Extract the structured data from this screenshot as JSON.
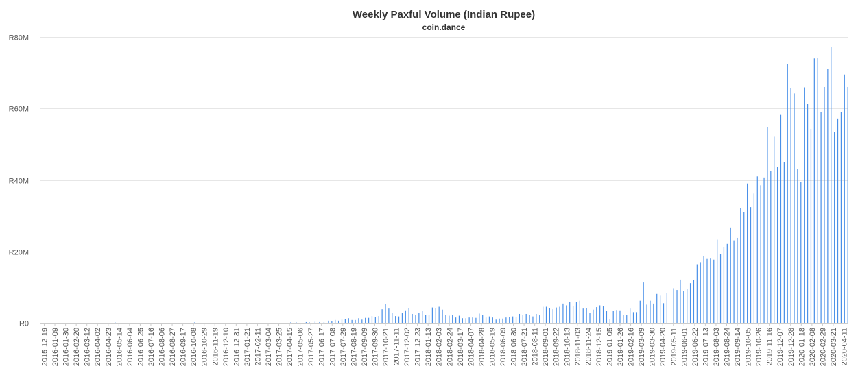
{
  "chart_data": {
    "type": "bar",
    "title": "Weekly Paxful Volume (Indian Rupee)",
    "subtitle": "coin.dance",
    "xlabel": "",
    "ylabel": "",
    "bar_color": "#4a90e8",
    "grid": true,
    "legend": "none",
    "ylim": [
      0,
      80000000
    ],
    "y_ticks": [
      0,
      20000000,
      40000000,
      60000000,
      80000000
    ],
    "y_tick_labels": [
      "R0",
      "R20M",
      "R40M",
      "R60M",
      "R80M"
    ],
    "x_tick_labels": [
      "2015-12-19",
      "2016-01-09",
      "2016-01-30",
      "2016-02-20",
      "2016-03-12",
      "2016-04-02",
      "2016-04-23",
      "2016-05-14",
      "2016-06-04",
      "2016-06-25",
      "2016-07-16",
      "2016-08-06",
      "2016-08-27",
      "2016-09-17",
      "2016-10-08",
      "2016-10-29",
      "2016-11-19",
      "2016-12-10",
      "2016-12-31",
      "2017-01-21",
      "2017-02-11",
      "2017-03-04",
      "2017-03-25",
      "2017-04-15",
      "2017-05-06",
      "2017-05-27",
      "2017-06-17",
      "2017-07-08",
      "2017-07-29",
      "2017-08-19",
      "2017-09-09",
      "2017-09-30",
      "2017-10-21",
      "2017-11-11",
      "2017-12-02",
      "2017-12-23",
      "2018-01-13",
      "2018-02-03",
      "2018-02-24",
      "2018-03-17",
      "2018-04-07",
      "2018-04-28",
      "2018-05-19",
      "2018-06-09",
      "2018-06-30",
      "2018-07-21",
      "2018-08-11",
      "2018-09-01",
      "2018-09-22",
      "2018-10-13",
      "2018-11-03",
      "2018-11-24",
      "2018-12-15",
      "2019-01-05",
      "2019-01-26",
      "2019-02-16",
      "2019-03-09",
      "2019-03-30",
      "2019-04-20",
      "2019-05-11",
      "2019-06-01",
      "2019-06-22",
      "2019-07-13",
      "2019-08-03",
      "2019-08-24",
      "2019-09-14",
      "2019-10-05",
      "2019-10-26",
      "2019-11-16",
      "2019-12-07",
      "2019-12-28",
      "2020-01-18",
      "2020-02-08",
      "2020-02-29",
      "2020-03-21",
      "2020-04-11"
    ],
    "values": [
      0,
      0,
      0,
      0,
      0,
      0,
      0,
      0,
      0,
      0,
      0,
      0,
      0,
      0,
      0,
      0,
      0,
      0,
      0,
      0,
      0,
      0,
      0,
      0,
      0,
      0,
      0,
      0,
      0,
      0,
      0,
      0,
      0,
      0,
      0,
      0,
      0,
      0,
      0,
      0,
      0,
      0,
      0,
      0,
      0,
      0,
      0,
      0,
      0,
      0,
      0,
      0,
      0,
      0,
      0,
      0,
      0,
      0,
      0,
      0,
      0,
      0,
      0,
      0,
      0,
      0,
      0,
      100000,
      0,
      0,
      0,
      0,
      0,
      0,
      0,
      0,
      0,
      0,
      0,
      0,
      0,
      0,
      0,
      0,
      0,
      0,
      0,
      0,
      0,
      0,
      0,
      0,
      0,
      0,
      0,
      0,
      0,
      0,
      0,
      0,
      0,
      0,
      0,
      0,
      0,
      0,
      0,
      0,
      0,
      0,
      0,
      0,
      0,
      0,
      0,
      0,
      0,
      0,
      0,
      0,
      0,
      0,
      0,
      0,
      0,
      0,
      0,
      0,
      0,
      0,
      0,
      0,
      0,
      0,
      0,
      0,
      0,
      0,
      100000,
      0,
      0,
      0,
      0,
      0,
      0,
      0,
      0,
      0,
      0,
      0,
      0,
      0,
      0,
      0,
      0,
      0,
      0,
      0,
      0,
      0,
      0,
      0,
      0,
      0,
      0,
      0,
      0,
      0,
      0,
      0,
      0,
      0,
      0,
      0,
      0,
      0,
      0,
      0,
      0,
      0,
      0,
      0,
      0,
      0,
      0,
      0,
      0,
      0,
      0,
      0,
      0,
      0,
      0,
      0,
      0,
      0,
      0,
      0,
      0,
      0,
      0,
      0,
      0,
      0,
      0,
      0,
      0,
      0,
      0,
      0,
      0,
      0,
      0,
      0,
      0,
      0,
      0,
      0,
      0,
      0,
      0,
      0,
      0,
      0,
      100000,
      0,
      0,
      0,
      0,
      200000,
      0,
      0,
      0,
      0,
      0,
      0,
      0,
      0,
      200000,
      0,
      0,
      100000,
      0,
      0,
      0,
      0,
      300000,
      0,
      0,
      0,
      200000,
      0,
      0,
      0,
      200000,
      0,
      0,
      0,
      600000,
      0,
      0,
      500000,
      0,
      0,
      800000,
      0,
      0,
      600000,
      0,
      0,
      900000,
      0,
      0,
      1100000,
      0,
      0,
      1300000,
      0,
      0,
      800000,
      0,
      0,
      800000,
      0,
      0,
      1300000,
      0,
      0,
      900000,
      0,
      0,
      1400000,
      0,
      0,
      1400000,
      0,
      0,
      1900000,
      0,
      0,
      1600000,
      0,
      0,
      1900000,
      0,
      0,
      3800000,
      0,
      0,
      5300000,
      0,
      0,
      4000000,
      0,
      0,
      2700000,
      0,
      0,
      1900000,
      0,
      0,
      1800000,
      0,
      0,
      2800000,
      0,
      0,
      3500000,
      0,
      0,
      4200000,
      0,
      0,
      2500000,
      0,
      0,
      2100000,
      0,
      0,
      2800000,
      0,
      0,
      3300000,
      0,
      0,
      2300000,
      0,
      0,
      2200000,
      0,
      0,
      4300000,
      0,
      0,
      4100000,
      0,
      0,
      4500000,
      0,
      0,
      3700000,
      0,
      0,
      2300000,
      0,
      0,
      2000000,
      0,
      0,
      2300000,
      0,
      0,
      1500000,
      0,
      0,
      2000000,
      0,
      0,
      1300000,
      0,
      0,
      1300000,
      0,
      0,
      1500000,
      0,
      0,
      1500000,
      0,
      0,
      1400000,
      0,
      0,
      2600000,
      0,
      0,
      2200000,
      0,
      0,
      1500000,
      0,
      0,
      1800000,
      0,
      0,
      1500000,
      0,
      0,
      900000,
      0,
      0,
      1200000,
      0,
      0,
      1200000,
      0,
      0,
      1500000,
      0,
      0,
      1700000,
      0,
      0,
      1800000,
      0,
      0,
      1700000,
      0,
      0,
      2500000,
      0,
      0,
      2200000,
      0,
      0,
      2500000,
      0,
      0,
      2300000,
      0,
      0,
      1800000,
      0,
      0,
      2500000,
      0,
      0,
      2100000,
      0,
      0,
      4500000,
      0,
      0,
      4500000,
      0,
      0,
      4100000,
      0,
      0,
      3800000,
      0,
      0,
      4300000,
      0,
      0,
      4500000,
      0,
      0,
      5400000,
      0,
      0,
      4900000,
      0,
      0,
      5900000,
      0,
      0,
      4800000,
      0,
      0,
      5800000,
      0,
      0,
      6200000,
      0,
      0,
      4000000,
      0,
      0,
      4100000,
      0,
      0,
      2800000,
      0,
      0,
      3700000,
      0,
      0,
      4400000,
      0,
      0,
      4900000,
      0,
      0,
      4600000,
      0,
      0,
      3300000,
      0,
      0,
      1100000,
      0,
      0,
      3300000,
      0,
      0,
      3600000,
      0,
      0,
      3500000,
      0,
      0,
      2200000,
      0,
      0,
      2200000,
      0,
      0,
      4000000,
      0,
      0,
      3000000,
      0,
      0,
      3000000,
      0,
      0,
      6200000,
      0,
      0,
      11300000,
      0,
      0,
      5100000,
      0,
      0,
      6200000,
      0,
      0,
      5400000,
      0,
      0,
      8100000,
      0,
      0,
      7600000,
      0,
      0,
      5500000,
      0,
      0,
      8400000,
      0,
      0,
      0,
      0,
      0,
      9700000,
      0,
      0,
      9200000,
      0,
      0,
      12100000,
      0,
      0,
      8900000,
      0,
      0,
      9500000,
      0,
      0,
      11100000,
      0,
      0,
      12000000,
      0,
      0,
      16400000,
      0,
      0,
      17000000,
      0,
      0,
      18700000,
      0,
      0,
      17900000,
      0,
      0,
      18000000,
      0,
      0,
      17700000,
      0,
      0,
      23300000,
      0,
      0,
      19300000,
      0,
      0,
      21200000,
      0,
      0,
      22100000,
      0,
      0,
      26700000,
      0,
      0,
      23100000,
      0,
      0,
      23800000,
      0,
      0,
      32100000,
      0,
      0,
      31000000,
      0,
      0,
      39000000,
      0,
      0,
      32400000,
      0,
      0,
      36200000,
      0,
      0,
      41000000,
      0,
      0,
      38500000,
      0,
      0,
      40700000,
      0,
      0,
      54800000,
      0,
      0,
      42500000,
      0,
      0,
      52100000,
      0,
      0,
      43600000,
      0,
      0,
      58200000,
      0,
      0,
      45000000,
      0,
      0,
      72400000,
      0,
      0,
      65800000,
      0,
      0,
      64200000,
      0,
      0,
      43100000,
      0,
      0,
      39500000,
      0,
      0,
      65900000,
      0,
      0,
      61200000,
      0,
      0,
      54300000,
      0,
      0,
      74000000,
      0,
      0,
      74200000,
      0,
      0,
      58900000,
      0,
      0,
      66000000,
      0,
      0,
      71000000,
      0,
      0,
      77200000,
      0,
      0,
      53500000,
      0,
      0,
      57200000,
      0,
      0,
      58900000,
      0,
      0,
      69500000,
      0,
      0,
      66000000
    ]
  }
}
